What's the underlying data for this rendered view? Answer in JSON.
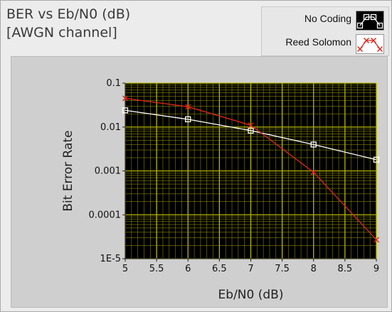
{
  "chart_data": {
    "type": "line",
    "title": [
      "BER vs Eb/N0 (dB)",
      "[AWGN channel]"
    ],
    "xlabel": "Eb/N0 (dB)",
    "ylabel": "Bit Error Rate",
    "xlim": [
      5,
      9
    ],
    "ylim": [
      1e-05,
      0.1
    ],
    "yscale": "log",
    "x_ticks": [
      5,
      5.5,
      6,
      6.5,
      7,
      7.5,
      8,
      8.5,
      9
    ],
    "x_tick_labels": [
      "5",
      "5.5",
      "6",
      "6.5",
      "7",
      "7.5",
      "8",
      "8.5",
      "9"
    ],
    "y_ticks": [
      0.1,
      0.01,
      0.001,
      0.0001,
      1e-05
    ],
    "y_tick_labels": [
      "0.1",
      "0.01",
      "0.001",
      "0.0001",
      "1E-5"
    ],
    "grid": true,
    "legend_position": "top-right",
    "plot_background": "#000000",
    "grid_color": "#b8b800",
    "series": [
      {
        "name": "No Coding",
        "color": "#ffffff",
        "marker": "square",
        "x": [
          5,
          6,
          7,
          8,
          9
        ],
        "values": [
          0.024,
          0.015,
          0.0083,
          0.004,
          0.0018
        ]
      },
      {
        "name": "Reed Solomon",
        "color": "#e0251b",
        "marker": "cross",
        "x": [
          5,
          6,
          7,
          8,
          9
        ],
        "values": [
          0.045,
          0.029,
          0.011,
          0.00093,
          2.7e-05
        ]
      }
    ]
  }
}
